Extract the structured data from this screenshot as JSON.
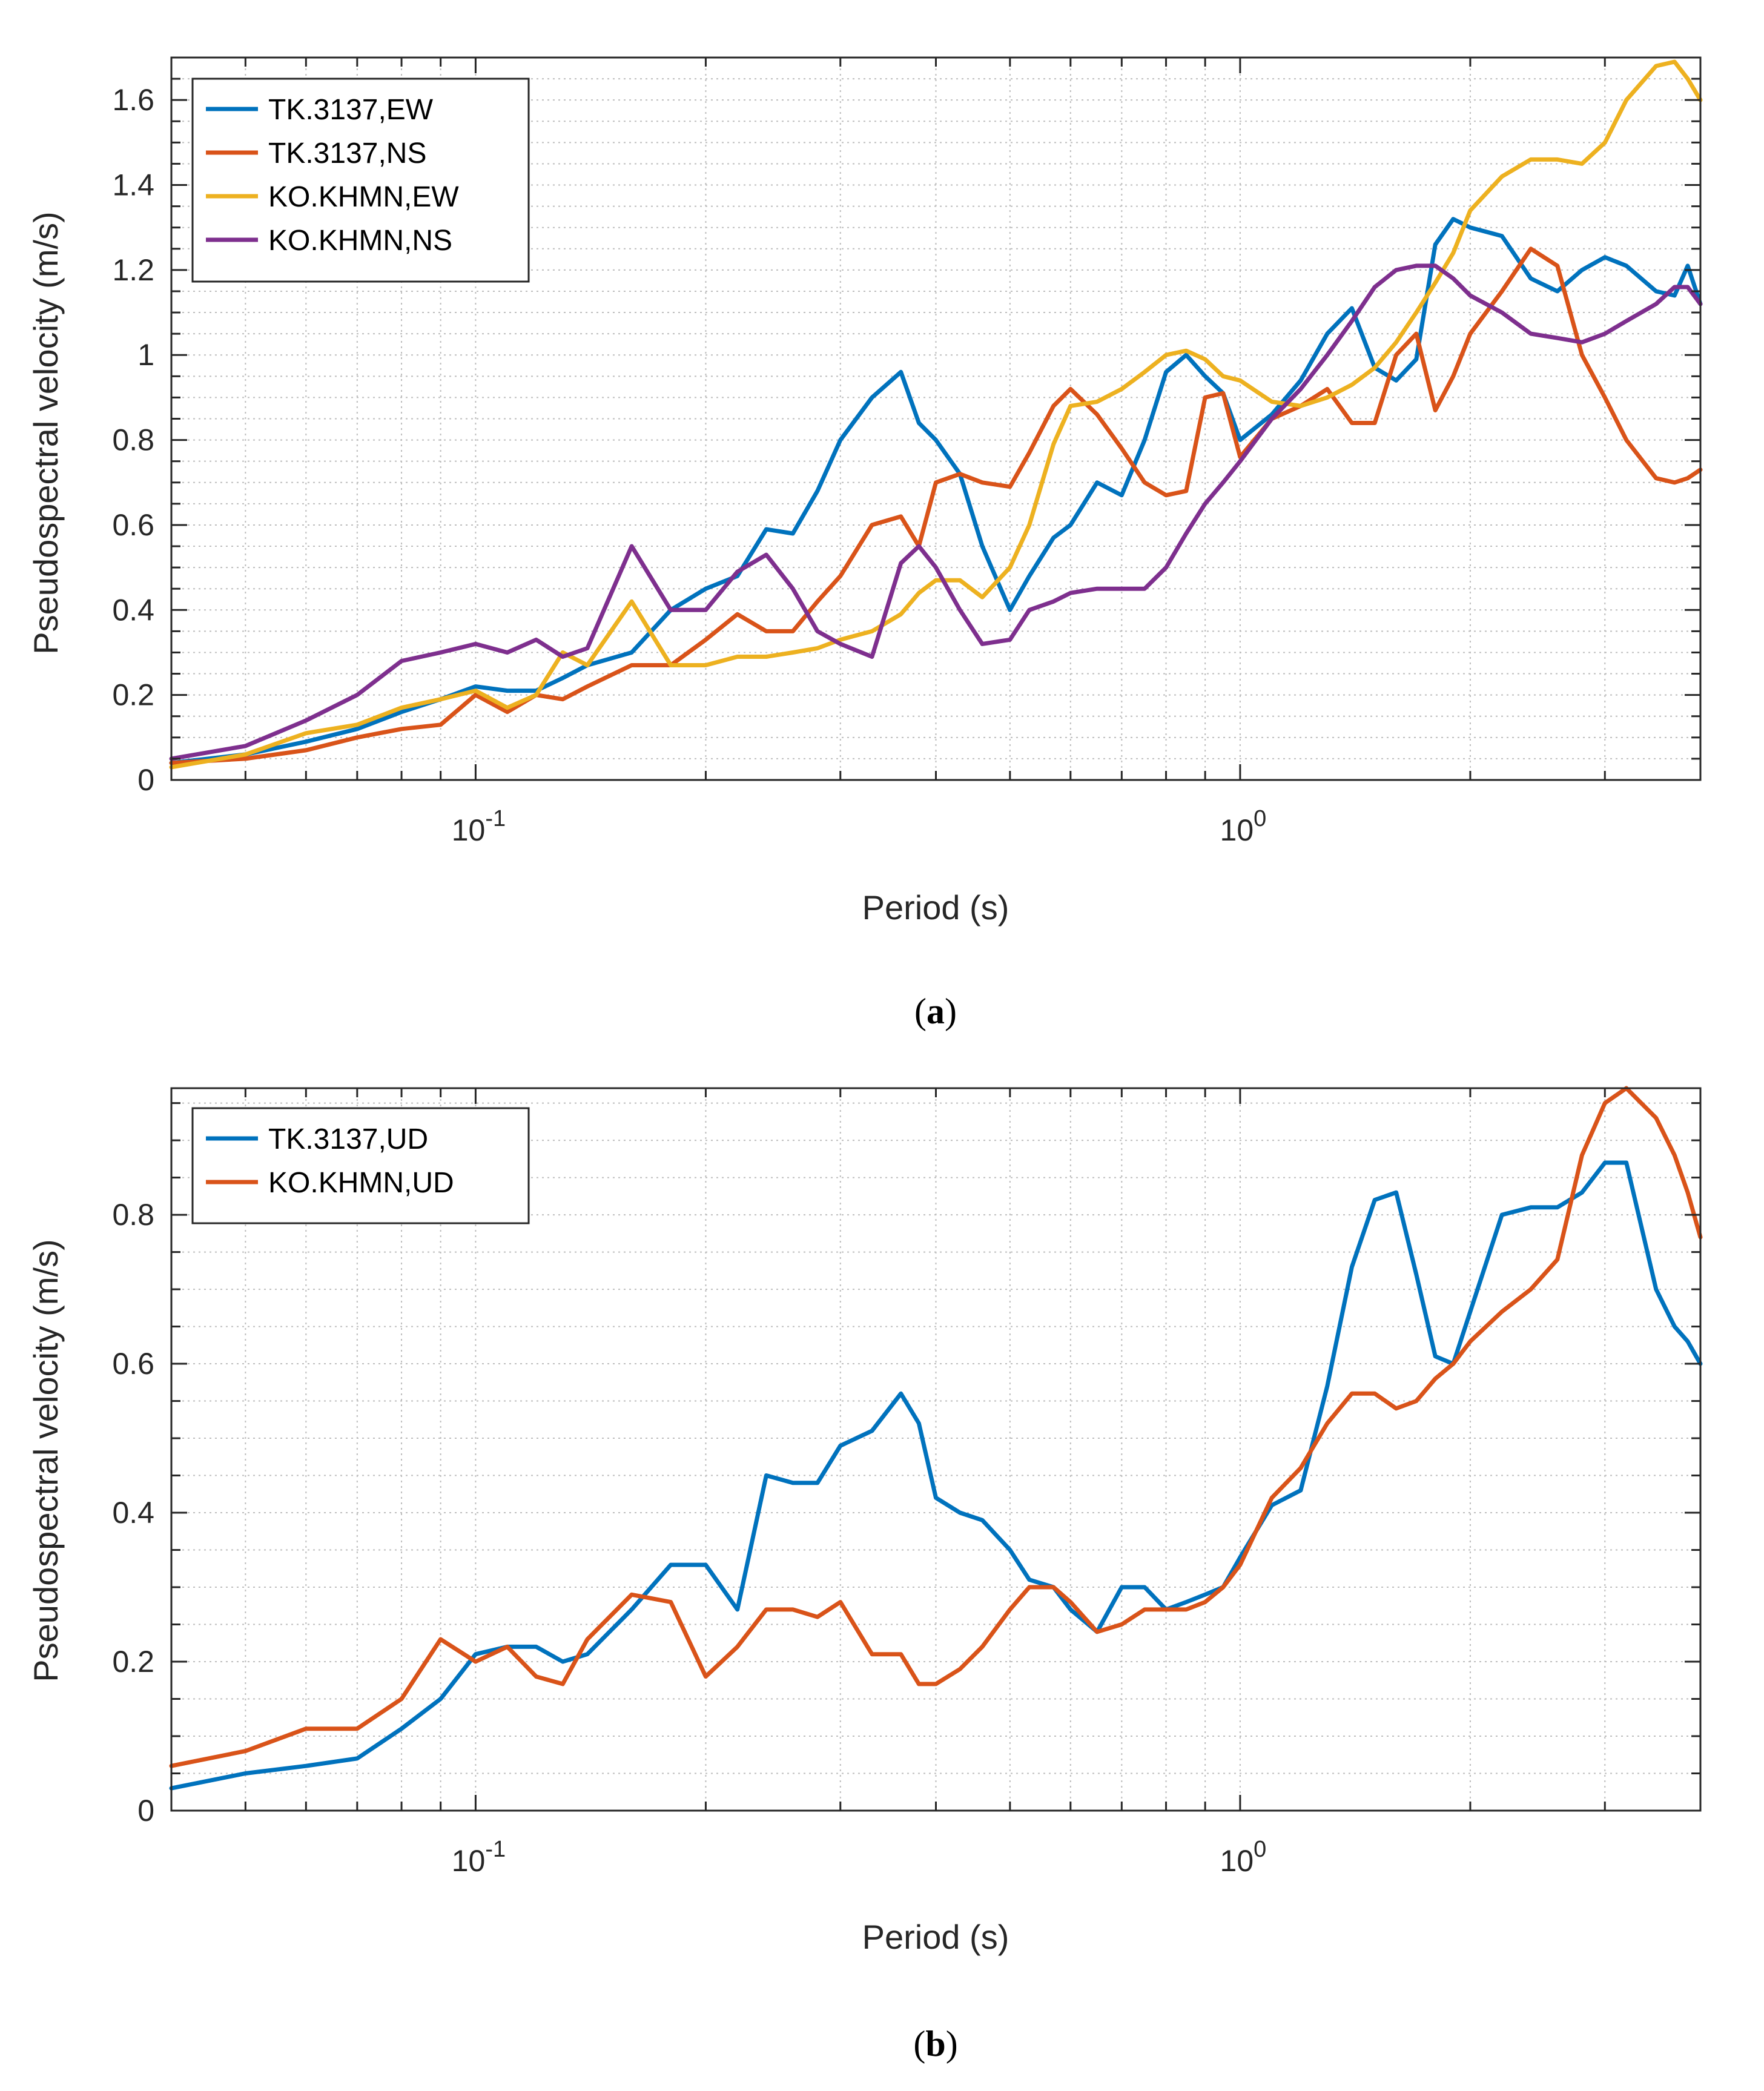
{
  "chart_data": [
    {
      "type": "line",
      "caption": "a",
      "xlabel": "Period (s)",
      "ylabel": "Pseudospectral velocity (m/s)",
      "xscale": "log",
      "xlim": [
        0.04,
        4.0
      ],
      "ylim": [
        0,
        1.7
      ],
      "yticks": [
        0,
        0.2,
        0.4,
        0.6,
        0.8,
        1,
        1.2,
        1.4,
        1.6
      ],
      "ytick_labels": [
        "0",
        "0.2",
        "0.4",
        "0.6",
        "0.8",
        "1",
        "1.2",
        "1.4",
        "1.6"
      ],
      "xticks": [
        0.1,
        1
      ],
      "xtick_bases": [
        "10",
        "10"
      ],
      "xtick_exponents": [
        "-1",
        "0"
      ],
      "grid": true,
      "legend_position": "top-left",
      "series": [
        {
          "name": "TK.3137,EW",
          "color": "#0072BD",
          "x": [
            0.04,
            0.05,
            0.06,
            0.07,
            0.08,
            0.09,
            0.1,
            0.11,
            0.12,
            0.13,
            0.14,
            0.16,
            0.18,
            0.2,
            0.22,
            0.24,
            0.26,
            0.28,
            0.3,
            0.33,
            0.36,
            0.38,
            0.4,
            0.43,
            0.46,
            0.5,
            0.53,
            0.57,
            0.6,
            0.65,
            0.7,
            0.75,
            0.8,
            0.85,
            0.9,
            0.95,
            1.0,
            1.1,
            1.2,
            1.3,
            1.4,
            1.5,
            1.6,
            1.7,
            1.8,
            1.9,
            2.0,
            2.2,
            2.4,
            2.6,
            2.8,
            3.0,
            3.2,
            3.5,
            3.7,
            3.85,
            4.0
          ],
          "y": [
            0.04,
            0.06,
            0.09,
            0.12,
            0.16,
            0.19,
            0.22,
            0.21,
            0.21,
            0.24,
            0.27,
            0.3,
            0.4,
            0.45,
            0.48,
            0.59,
            0.58,
            0.68,
            0.8,
            0.9,
            0.96,
            0.84,
            0.8,
            0.72,
            0.55,
            0.4,
            0.48,
            0.57,
            0.6,
            0.7,
            0.67,
            0.8,
            0.96,
            1.0,
            0.95,
            0.91,
            0.8,
            0.86,
            0.94,
            1.05,
            1.11,
            0.97,
            0.94,
            0.99,
            1.26,
            1.32,
            1.3,
            1.28,
            1.18,
            1.15,
            1.2,
            1.23,
            1.21,
            1.15,
            1.14,
            1.21,
            1.12
          ]
        },
        {
          "name": "TK.3137,NS",
          "color": "#D95319",
          "x": [
            0.04,
            0.05,
            0.06,
            0.07,
            0.08,
            0.09,
            0.1,
            0.11,
            0.12,
            0.13,
            0.14,
            0.16,
            0.18,
            0.2,
            0.22,
            0.24,
            0.26,
            0.28,
            0.3,
            0.33,
            0.36,
            0.38,
            0.4,
            0.43,
            0.46,
            0.5,
            0.53,
            0.57,
            0.6,
            0.65,
            0.7,
            0.75,
            0.8,
            0.85,
            0.9,
            0.95,
            1.0,
            1.1,
            1.2,
            1.3,
            1.4,
            1.5,
            1.6,
            1.7,
            1.8,
            1.9,
            2.0,
            2.2,
            2.4,
            2.6,
            2.8,
            3.0,
            3.2,
            3.5,
            3.7,
            3.85,
            4.0
          ],
          "y": [
            0.04,
            0.05,
            0.07,
            0.1,
            0.12,
            0.13,
            0.2,
            0.16,
            0.2,
            0.19,
            0.22,
            0.27,
            0.27,
            0.33,
            0.39,
            0.35,
            0.35,
            0.42,
            0.48,
            0.6,
            0.62,
            0.55,
            0.7,
            0.72,
            0.7,
            0.69,
            0.77,
            0.88,
            0.92,
            0.86,
            0.78,
            0.7,
            0.67,
            0.68,
            0.9,
            0.91,
            0.76,
            0.85,
            0.88,
            0.92,
            0.84,
            0.84,
            1.0,
            1.05,
            0.87,
            0.95,
            1.05,
            1.15,
            1.25,
            1.21,
            1.0,
            0.9,
            0.8,
            0.71,
            0.7,
            0.71,
            0.73
          ]
        },
        {
          "name": "KO.KHMN,EW",
          "color": "#EDB120",
          "x": [
            0.04,
            0.05,
            0.06,
            0.07,
            0.08,
            0.09,
            0.1,
            0.11,
            0.12,
            0.13,
            0.14,
            0.16,
            0.18,
            0.2,
            0.22,
            0.24,
            0.26,
            0.28,
            0.3,
            0.33,
            0.36,
            0.38,
            0.4,
            0.43,
            0.46,
            0.5,
            0.53,
            0.57,
            0.6,
            0.65,
            0.7,
            0.75,
            0.8,
            0.85,
            0.9,
            0.95,
            1.0,
            1.1,
            1.2,
            1.3,
            1.4,
            1.5,
            1.6,
            1.7,
            1.8,
            1.9,
            2.0,
            2.2,
            2.4,
            2.6,
            2.8,
            3.0,
            3.2,
            3.5,
            3.7,
            3.85,
            4.0
          ],
          "y": [
            0.03,
            0.06,
            0.11,
            0.13,
            0.17,
            0.19,
            0.21,
            0.17,
            0.2,
            0.3,
            0.27,
            0.42,
            0.27,
            0.27,
            0.29,
            0.29,
            0.3,
            0.31,
            0.33,
            0.35,
            0.39,
            0.44,
            0.47,
            0.47,
            0.43,
            0.5,
            0.6,
            0.79,
            0.88,
            0.89,
            0.92,
            0.96,
            1.0,
            1.01,
            0.99,
            0.95,
            0.94,
            0.89,
            0.88,
            0.9,
            0.93,
            0.97,
            1.03,
            1.1,
            1.17,
            1.24,
            1.34,
            1.42,
            1.46,
            1.46,
            1.45,
            1.5,
            1.6,
            1.68,
            1.69,
            1.65,
            1.6
          ]
        },
        {
          "name": "KO.KHMN,NS",
          "color": "#7E2F8E",
          "x": [
            0.04,
            0.05,
            0.06,
            0.07,
            0.08,
            0.09,
            0.1,
            0.11,
            0.12,
            0.13,
            0.14,
            0.16,
            0.18,
            0.2,
            0.22,
            0.24,
            0.26,
            0.28,
            0.3,
            0.33,
            0.36,
            0.38,
            0.4,
            0.43,
            0.46,
            0.5,
            0.53,
            0.57,
            0.6,
            0.65,
            0.7,
            0.75,
            0.8,
            0.85,
            0.9,
            0.95,
            1.0,
            1.1,
            1.2,
            1.3,
            1.4,
            1.5,
            1.6,
            1.7,
            1.8,
            1.9,
            2.0,
            2.2,
            2.4,
            2.6,
            2.8,
            3.0,
            3.2,
            3.5,
            3.7,
            3.85,
            4.0
          ],
          "y": [
            0.05,
            0.08,
            0.14,
            0.2,
            0.28,
            0.3,
            0.32,
            0.3,
            0.33,
            0.29,
            0.31,
            0.55,
            0.4,
            0.4,
            0.49,
            0.53,
            0.45,
            0.35,
            0.32,
            0.29,
            0.51,
            0.55,
            0.5,
            0.4,
            0.32,
            0.33,
            0.4,
            0.42,
            0.44,
            0.45,
            0.45,
            0.45,
            0.5,
            0.58,
            0.65,
            0.7,
            0.75,
            0.85,
            0.92,
            1.0,
            1.08,
            1.16,
            1.2,
            1.21,
            1.21,
            1.18,
            1.14,
            1.1,
            1.05,
            1.04,
            1.03,
            1.05,
            1.08,
            1.12,
            1.16,
            1.16,
            1.12
          ]
        }
      ]
    },
    {
      "type": "line",
      "caption": "b",
      "xlabel": "Period (s)",
      "ylabel": "Pseudospectral velocity (m/s)",
      "xscale": "log",
      "xlim": [
        0.04,
        4.0
      ],
      "ylim": [
        0,
        0.97
      ],
      "yticks": [
        0,
        0.2,
        0.4,
        0.6,
        0.8
      ],
      "ytick_labels": [
        "0",
        "0.2",
        "0.4",
        "0.6",
        "0.8"
      ],
      "xticks": [
        0.1,
        1
      ],
      "xtick_bases": [
        "10",
        "10"
      ],
      "xtick_exponents": [
        "-1",
        "0"
      ],
      "grid": true,
      "legend_position": "top-left",
      "series": [
        {
          "name": "TK.3137,UD",
          "color": "#0072BD",
          "x": [
            0.04,
            0.05,
            0.06,
            0.07,
            0.08,
            0.09,
            0.1,
            0.11,
            0.12,
            0.13,
            0.14,
            0.16,
            0.18,
            0.2,
            0.22,
            0.24,
            0.26,
            0.28,
            0.3,
            0.33,
            0.36,
            0.38,
            0.4,
            0.43,
            0.46,
            0.5,
            0.53,
            0.57,
            0.6,
            0.65,
            0.7,
            0.75,
            0.8,
            0.85,
            0.9,
            0.95,
            1.0,
            1.1,
            1.2,
            1.3,
            1.4,
            1.5,
            1.6,
            1.7,
            1.8,
            1.9,
            2.0,
            2.2,
            2.4,
            2.6,
            2.8,
            3.0,
            3.2,
            3.5,
            3.7,
            3.85,
            4.0
          ],
          "y": [
            0.03,
            0.05,
            0.06,
            0.07,
            0.11,
            0.15,
            0.21,
            0.22,
            0.22,
            0.2,
            0.21,
            0.27,
            0.33,
            0.33,
            0.27,
            0.45,
            0.44,
            0.44,
            0.49,
            0.51,
            0.56,
            0.52,
            0.42,
            0.4,
            0.39,
            0.35,
            0.31,
            0.3,
            0.27,
            0.24,
            0.3,
            0.3,
            0.27,
            0.28,
            0.29,
            0.3,
            0.34,
            0.41,
            0.43,
            0.57,
            0.73,
            0.82,
            0.83,
            0.72,
            0.61,
            0.6,
            0.67,
            0.8,
            0.81,
            0.81,
            0.83,
            0.87,
            0.87,
            0.7,
            0.65,
            0.63,
            0.6
          ]
        },
        {
          "name": "KO.KHMN,UD",
          "color": "#D95319",
          "x": [
            0.04,
            0.05,
            0.06,
            0.07,
            0.08,
            0.09,
            0.1,
            0.11,
            0.12,
            0.13,
            0.14,
            0.16,
            0.18,
            0.2,
            0.22,
            0.24,
            0.26,
            0.28,
            0.3,
            0.33,
            0.36,
            0.38,
            0.4,
            0.43,
            0.46,
            0.5,
            0.53,
            0.57,
            0.6,
            0.65,
            0.7,
            0.75,
            0.8,
            0.85,
            0.9,
            0.95,
            1.0,
            1.1,
            1.2,
            1.3,
            1.4,
            1.5,
            1.6,
            1.7,
            1.8,
            1.9,
            2.0,
            2.2,
            2.4,
            2.6,
            2.8,
            3.0,
            3.2,
            3.5,
            3.7,
            3.85,
            4.0
          ],
          "y": [
            0.06,
            0.08,
            0.11,
            0.11,
            0.15,
            0.23,
            0.2,
            0.22,
            0.18,
            0.17,
            0.23,
            0.29,
            0.28,
            0.18,
            0.22,
            0.27,
            0.27,
            0.26,
            0.28,
            0.21,
            0.21,
            0.17,
            0.17,
            0.19,
            0.22,
            0.27,
            0.3,
            0.3,
            0.28,
            0.24,
            0.25,
            0.27,
            0.27,
            0.27,
            0.28,
            0.3,
            0.33,
            0.42,
            0.46,
            0.52,
            0.56,
            0.56,
            0.54,
            0.55,
            0.58,
            0.6,
            0.63,
            0.67,
            0.7,
            0.74,
            0.88,
            0.95,
            0.97,
            0.93,
            0.88,
            0.83,
            0.77
          ]
        }
      ]
    }
  ]
}
